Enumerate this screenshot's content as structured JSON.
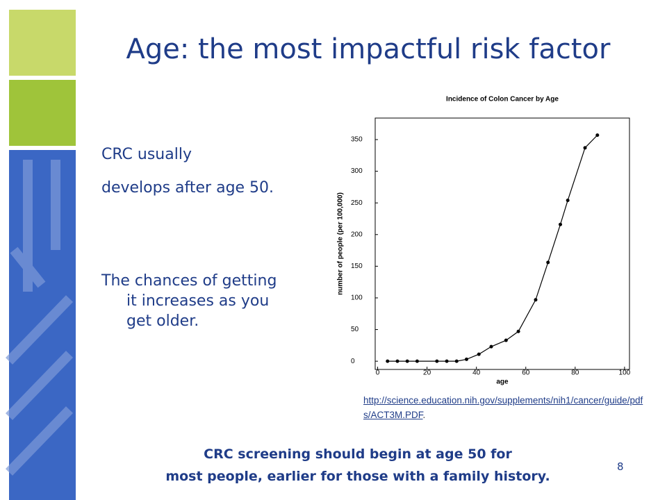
{
  "slide": {
    "title": "Age: the most impactful risk factor",
    "bullets": [
      "CRC usually",
      "develops after age 50.",
      "The chances of getting it increases as you get older."
    ],
    "source": {
      "url": "http://science.education.nih.gov/supplements/nih1/cancer/guide/pdfs/ACT3M.PDF",
      "suffix": "."
    },
    "footer": [
      "CRC screening should begin at age 50 for",
      "most people, earlier for those with a family history."
    ],
    "page_number": "8"
  },
  "chart_data": {
    "type": "line",
    "title": "Incidence of Colon Cancer by Age",
    "x_label": "age",
    "y_label": "number of people (per 100,000)",
    "x": [
      4,
      8,
      12,
      16,
      24,
      28,
      32,
      36,
      41,
      46,
      52,
      57,
      64,
      69,
      74,
      77,
      84,
      89
    ],
    "series": [
      {
        "name": "incidence",
        "color": "#000000",
        "values": [
          0,
          0,
          0,
          0,
          0,
          0,
          0,
          3,
          11,
          23,
          33,
          47,
          97,
          156,
          216,
          254,
          337,
          357
        ]
      }
    ],
    "xlim": [
      -1,
      102
    ],
    "ylim": [
      -13,
      384
    ],
    "xticks": [
      0,
      20,
      40,
      60,
      80,
      100
    ],
    "yticks": [
      0,
      50,
      100,
      150,
      200,
      250,
      300,
      350
    ]
  }
}
